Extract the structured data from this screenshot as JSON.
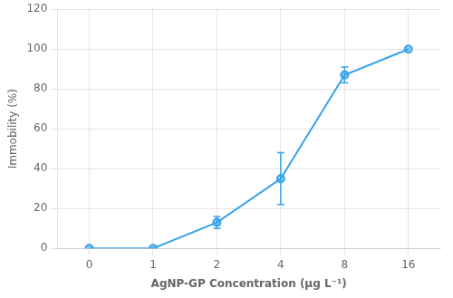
{
  "chart_data": {
    "type": "line",
    "categories": [
      "0",
      "1",
      "2",
      "4",
      "8",
      "16"
    ],
    "values": [
      0,
      0,
      13,
      35,
      87,
      100
    ],
    "errors": [
      0,
      0,
      3,
      13,
      4,
      0
    ],
    "xlabel": "AgNP-GP Concentration (μg L⁻¹)",
    "ylabel": "Immobility (%)",
    "ylim": [
      0,
      120
    ],
    "yticks": [
      0,
      20,
      40,
      60,
      80,
      100,
      120
    ],
    "grid": true,
    "marker": "circle"
  }
}
